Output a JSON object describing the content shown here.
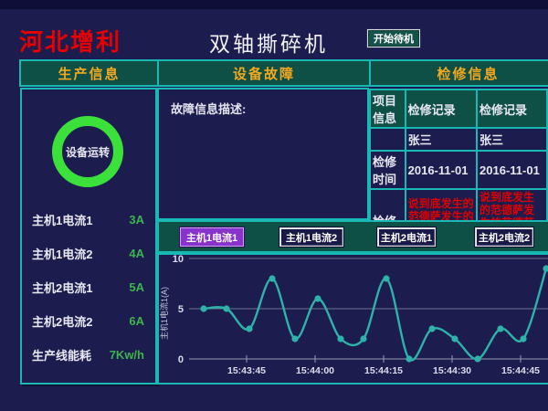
{
  "header": {
    "logo": "河北增利",
    "title": "双轴撕碎机",
    "standby_button": "开始待机"
  },
  "section_headers": {
    "production": "生产信息",
    "fault": "设备故障",
    "maintenance": "检修信息"
  },
  "production": {
    "status_ring_label": "设备运转",
    "rows": [
      {
        "label": "主机1电流1",
        "value": "3A"
      },
      {
        "label": "主机1电流2",
        "value": "4A"
      },
      {
        "label": "主机2电流1",
        "value": "5A"
      },
      {
        "label": "主机2电流2",
        "value": "6A"
      },
      {
        "label": "生产线能耗",
        "value": "7Kw/h"
      }
    ]
  },
  "fault": {
    "description_label": "故障信息描述:"
  },
  "maintenance": {
    "rows": [
      {
        "label": "项目信息",
        "col1": "检修记录",
        "col2": "检修记录"
      },
      {
        "label": "",
        "col1": "张三",
        "col2": "张三"
      },
      {
        "label": "检修时间",
        "col1": "2016-11-01",
        "col2": "2016-11-01"
      },
      {
        "label": "检修内容",
        "col1": "说到底发生的范德萨发生的范德萨范德萨发生的范德萨发士大夫似的",
        "col2": "说到底发生的范德萨发生的范德萨范德萨发生的范德萨发士大夫似的"
      }
    ]
  },
  "trend": {
    "buttons": [
      {
        "label": "主机1电流1",
        "active": true
      },
      {
        "label": "主机1电流2",
        "active": false
      },
      {
        "label": "主机2电流1",
        "active": false
      },
      {
        "label": "主机2电流2",
        "active": false
      }
    ]
  },
  "chart_data": {
    "type": "line",
    "title": "",
    "ylabel": "主机1电流1(A)",
    "xlabel": "",
    "ylim": [
      0,
      10
    ],
    "yticks": [
      0,
      5,
      10
    ],
    "xticks": [
      "15:43:45",
      "15:44:00",
      "15:44:15",
      "15:44:30",
      "15:44:45"
    ],
    "values": [
      5,
      5,
      3,
      8,
      2,
      6,
      2,
      2,
      8,
      0,
      3,
      2,
      0,
      3,
      2,
      9
    ],
    "grid": true,
    "marker": "circle",
    "line_color": "#2fb2aa"
  },
  "colors": {
    "background": "#1c1c4e",
    "panel_green": "#0e4f46",
    "border_teal": "#19b8b4",
    "header_yellow": "#f2a81e",
    "logo_red": "#e80000",
    "alert_red": "#e00000",
    "value_green": "#3cb54c",
    "ring_green": "#3be03b",
    "active_button_purple": "#8833cc",
    "chart_line": "#2fb2aa"
  }
}
